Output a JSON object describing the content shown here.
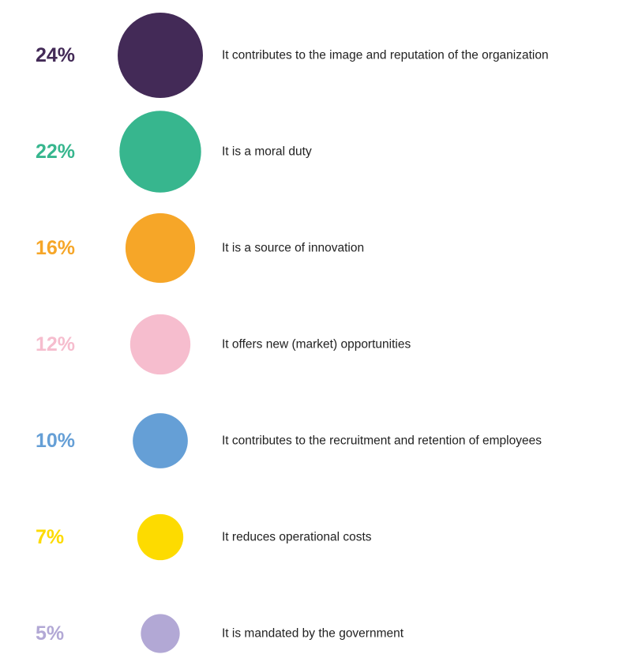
{
  "chart_data": {
    "type": "bubble",
    "unit": "%",
    "items": [
      {
        "value": 24,
        "label": "24%",
        "text": "It contributes to the image and reputation of the organization",
        "color": "#432A57"
      },
      {
        "value": 22,
        "label": "22%",
        "text": "It is a moral duty",
        "color": "#37B68E"
      },
      {
        "value": 16,
        "label": "16%",
        "text": "It is a source of innovation",
        "color": "#F6A628"
      },
      {
        "value": 12,
        "label": "12%",
        "text": "It offers new (market) opportunities",
        "color": "#F6BDCE"
      },
      {
        "value": 10,
        "label": "10%",
        "text": "It contributes to the recruitment and retention of employees",
        "color": "#659FD6"
      },
      {
        "value": 7,
        "label": "7%",
        "text": "It reduces operational costs",
        "color": "#FDDB00"
      },
      {
        "value": 5,
        "label": "5%",
        "text": "It is mandated by the government",
        "color": "#B2A8D5"
      }
    ]
  }
}
